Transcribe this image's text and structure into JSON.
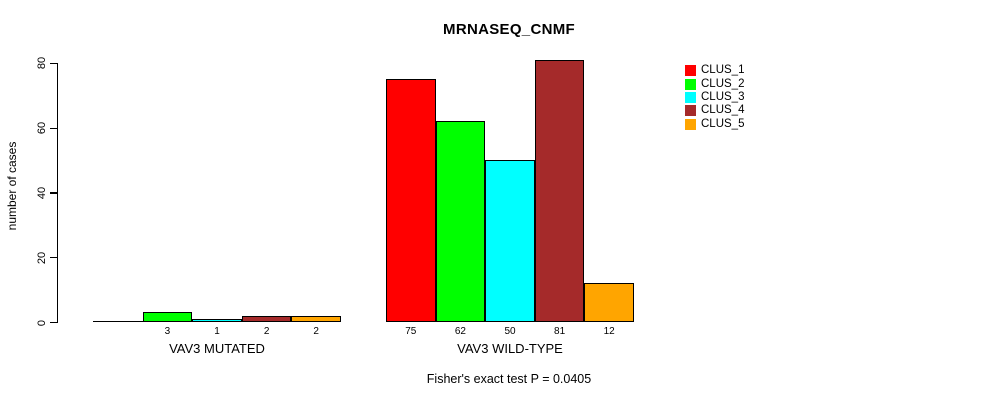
{
  "figure": {
    "title": "MRNASEQ_CNMF",
    "ylabel": "number of cases",
    "footer": "Fisher's exact test P = 0.0405"
  },
  "legend": {
    "items": [
      {
        "label": "CLUS_1",
        "color": "#FF0000"
      },
      {
        "label": "CLUS_2",
        "color": "#00FF00"
      },
      {
        "label": "CLUS_3",
        "color": "#00FFFF"
      },
      {
        "label": "CLUS_4",
        "color": "#A52A2A"
      },
      {
        "label": "CLUS_5",
        "color": "#FFA500"
      }
    ]
  },
  "chart_data": {
    "type": "bar",
    "title": "MRNASEQ_CNMF",
    "xlabel": "",
    "ylabel": "number of cases",
    "ylim": [
      0,
      80
    ],
    "yticks": [
      0,
      20,
      40,
      60,
      80
    ],
    "categories": [
      "VAV3 MUTATED",
      "VAV3 WILD-TYPE"
    ],
    "series": [
      {
        "name": "CLUS_1",
        "color": "#FF0000",
        "values": [
          0,
          75
        ]
      },
      {
        "name": "CLUS_2",
        "color": "#00FF00",
        "values": [
          3,
          62
        ]
      },
      {
        "name": "CLUS_3",
        "color": "#00FFFF",
        "values": [
          1,
          50
        ]
      },
      {
        "name": "CLUS_4",
        "color": "#A52A2A",
        "values": [
          2,
          81
        ]
      },
      {
        "name": "CLUS_5",
        "color": "#FFA500",
        "values": [
          2,
          12
        ]
      }
    ],
    "bar_value_labels": [
      [
        null,
        3,
        1,
        2,
        2
      ],
      [
        75,
        62,
        50,
        81,
        12
      ]
    ],
    "annotation": "Fisher's exact test P = 0.0405",
    "legend_position": "top-right",
    "legend_entries": [
      "CLUS_1",
      "CLUS_2",
      "CLUS_3",
      "CLUS_4",
      "CLUS_5"
    ],
    "grid": false,
    "bar_border_color": "#000000"
  }
}
